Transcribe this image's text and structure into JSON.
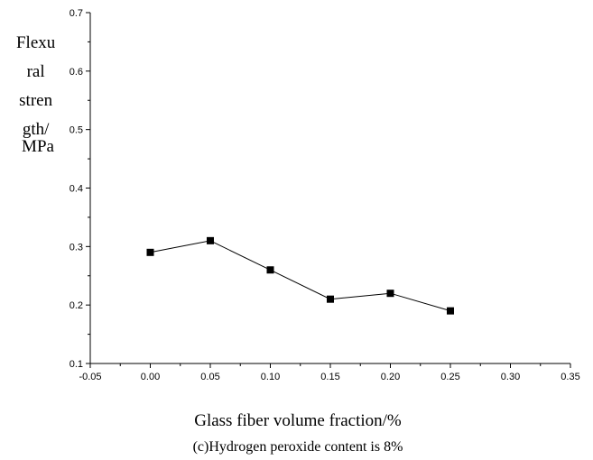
{
  "chart_data": {
    "type": "line",
    "title": "",
    "xlabel": "Glass fiber volume fraction/%",
    "ylabel_lines": [
      "Flexu",
      "ral",
      "stren",
      "gth/",
      "MPa"
    ],
    "caption": "(c)Hydrogen peroxide content is 8%",
    "x_ticks": [
      "-0.05",
      "0.00",
      "0.05",
      "0.10",
      "0.15",
      "0.20",
      "0.25",
      "0.30",
      "0.35"
    ],
    "y_ticks": [
      "0.1",
      "0.2",
      "0.3",
      "0.4",
      "0.5",
      "0.6",
      "0.7"
    ],
    "xlim": [
      -0.05,
      0.35
    ],
    "ylim": [
      0.1,
      0.7
    ],
    "series": [
      {
        "x": [
          0.0,
          0.05,
          0.1,
          0.15,
          0.2,
          0.25
        ],
        "y": [
          0.29,
          0.31,
          0.26,
          0.21,
          0.22,
          0.19
        ],
        "marker": "square",
        "color": "#000000"
      }
    ],
    "grid": false,
    "legend": "none"
  }
}
